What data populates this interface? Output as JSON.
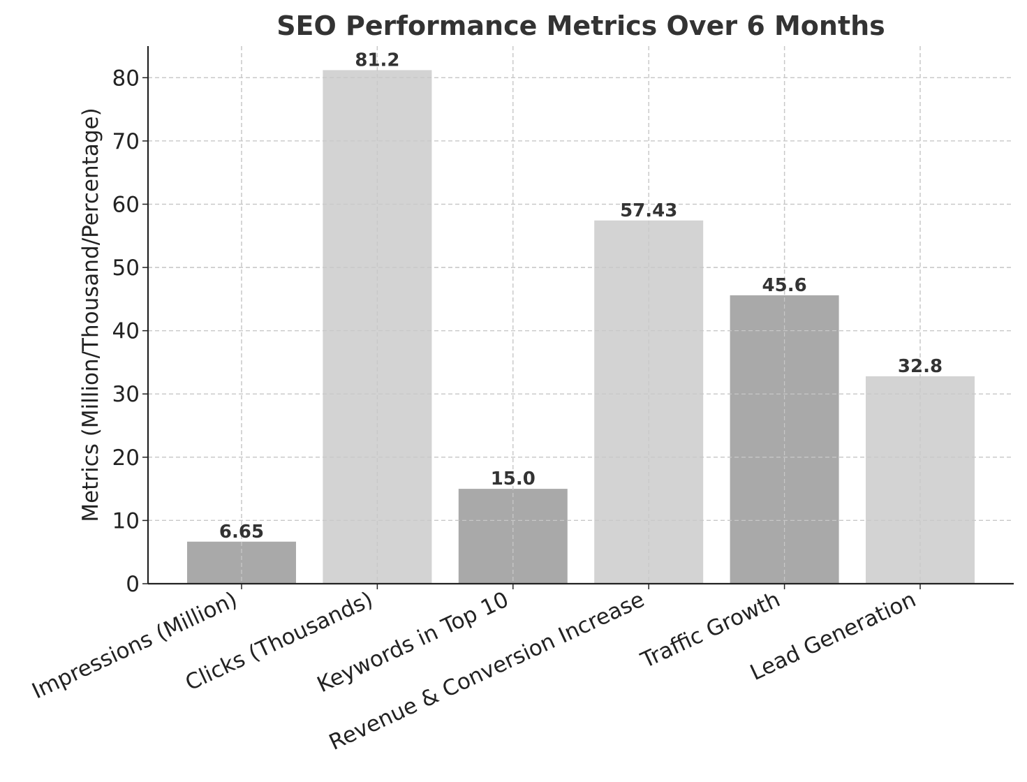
{
  "chart_data": {
    "type": "bar",
    "title": "SEO Performance Metrics Over 6 Months",
    "xlabel": "",
    "ylabel": "Metrics (Million/Thousand/Percentage)",
    "categories": [
      "Impressions (Million)",
      "Clicks (Thousands)",
      "Keywords in Top 10",
      "Revenue & Conversion Increase",
      "Traffic Growth",
      "Lead Generation"
    ],
    "values": [
      6.65,
      81.2,
      15.0,
      57.43,
      45.6,
      32.8
    ],
    "value_labels": [
      "6.65",
      "81.2",
      "15.0",
      "57.43",
      "45.6",
      "32.8"
    ],
    "ylim": [
      0,
      85
    ],
    "yticks": [
      0,
      10,
      20,
      30,
      40,
      50,
      60,
      70,
      80
    ],
    "grid": true,
    "bar_colors": [
      "#a9a9a9",
      "#d3d3d3",
      "#a9a9a9",
      "#d3d3d3",
      "#a9a9a9",
      "#d3d3d3"
    ]
  }
}
